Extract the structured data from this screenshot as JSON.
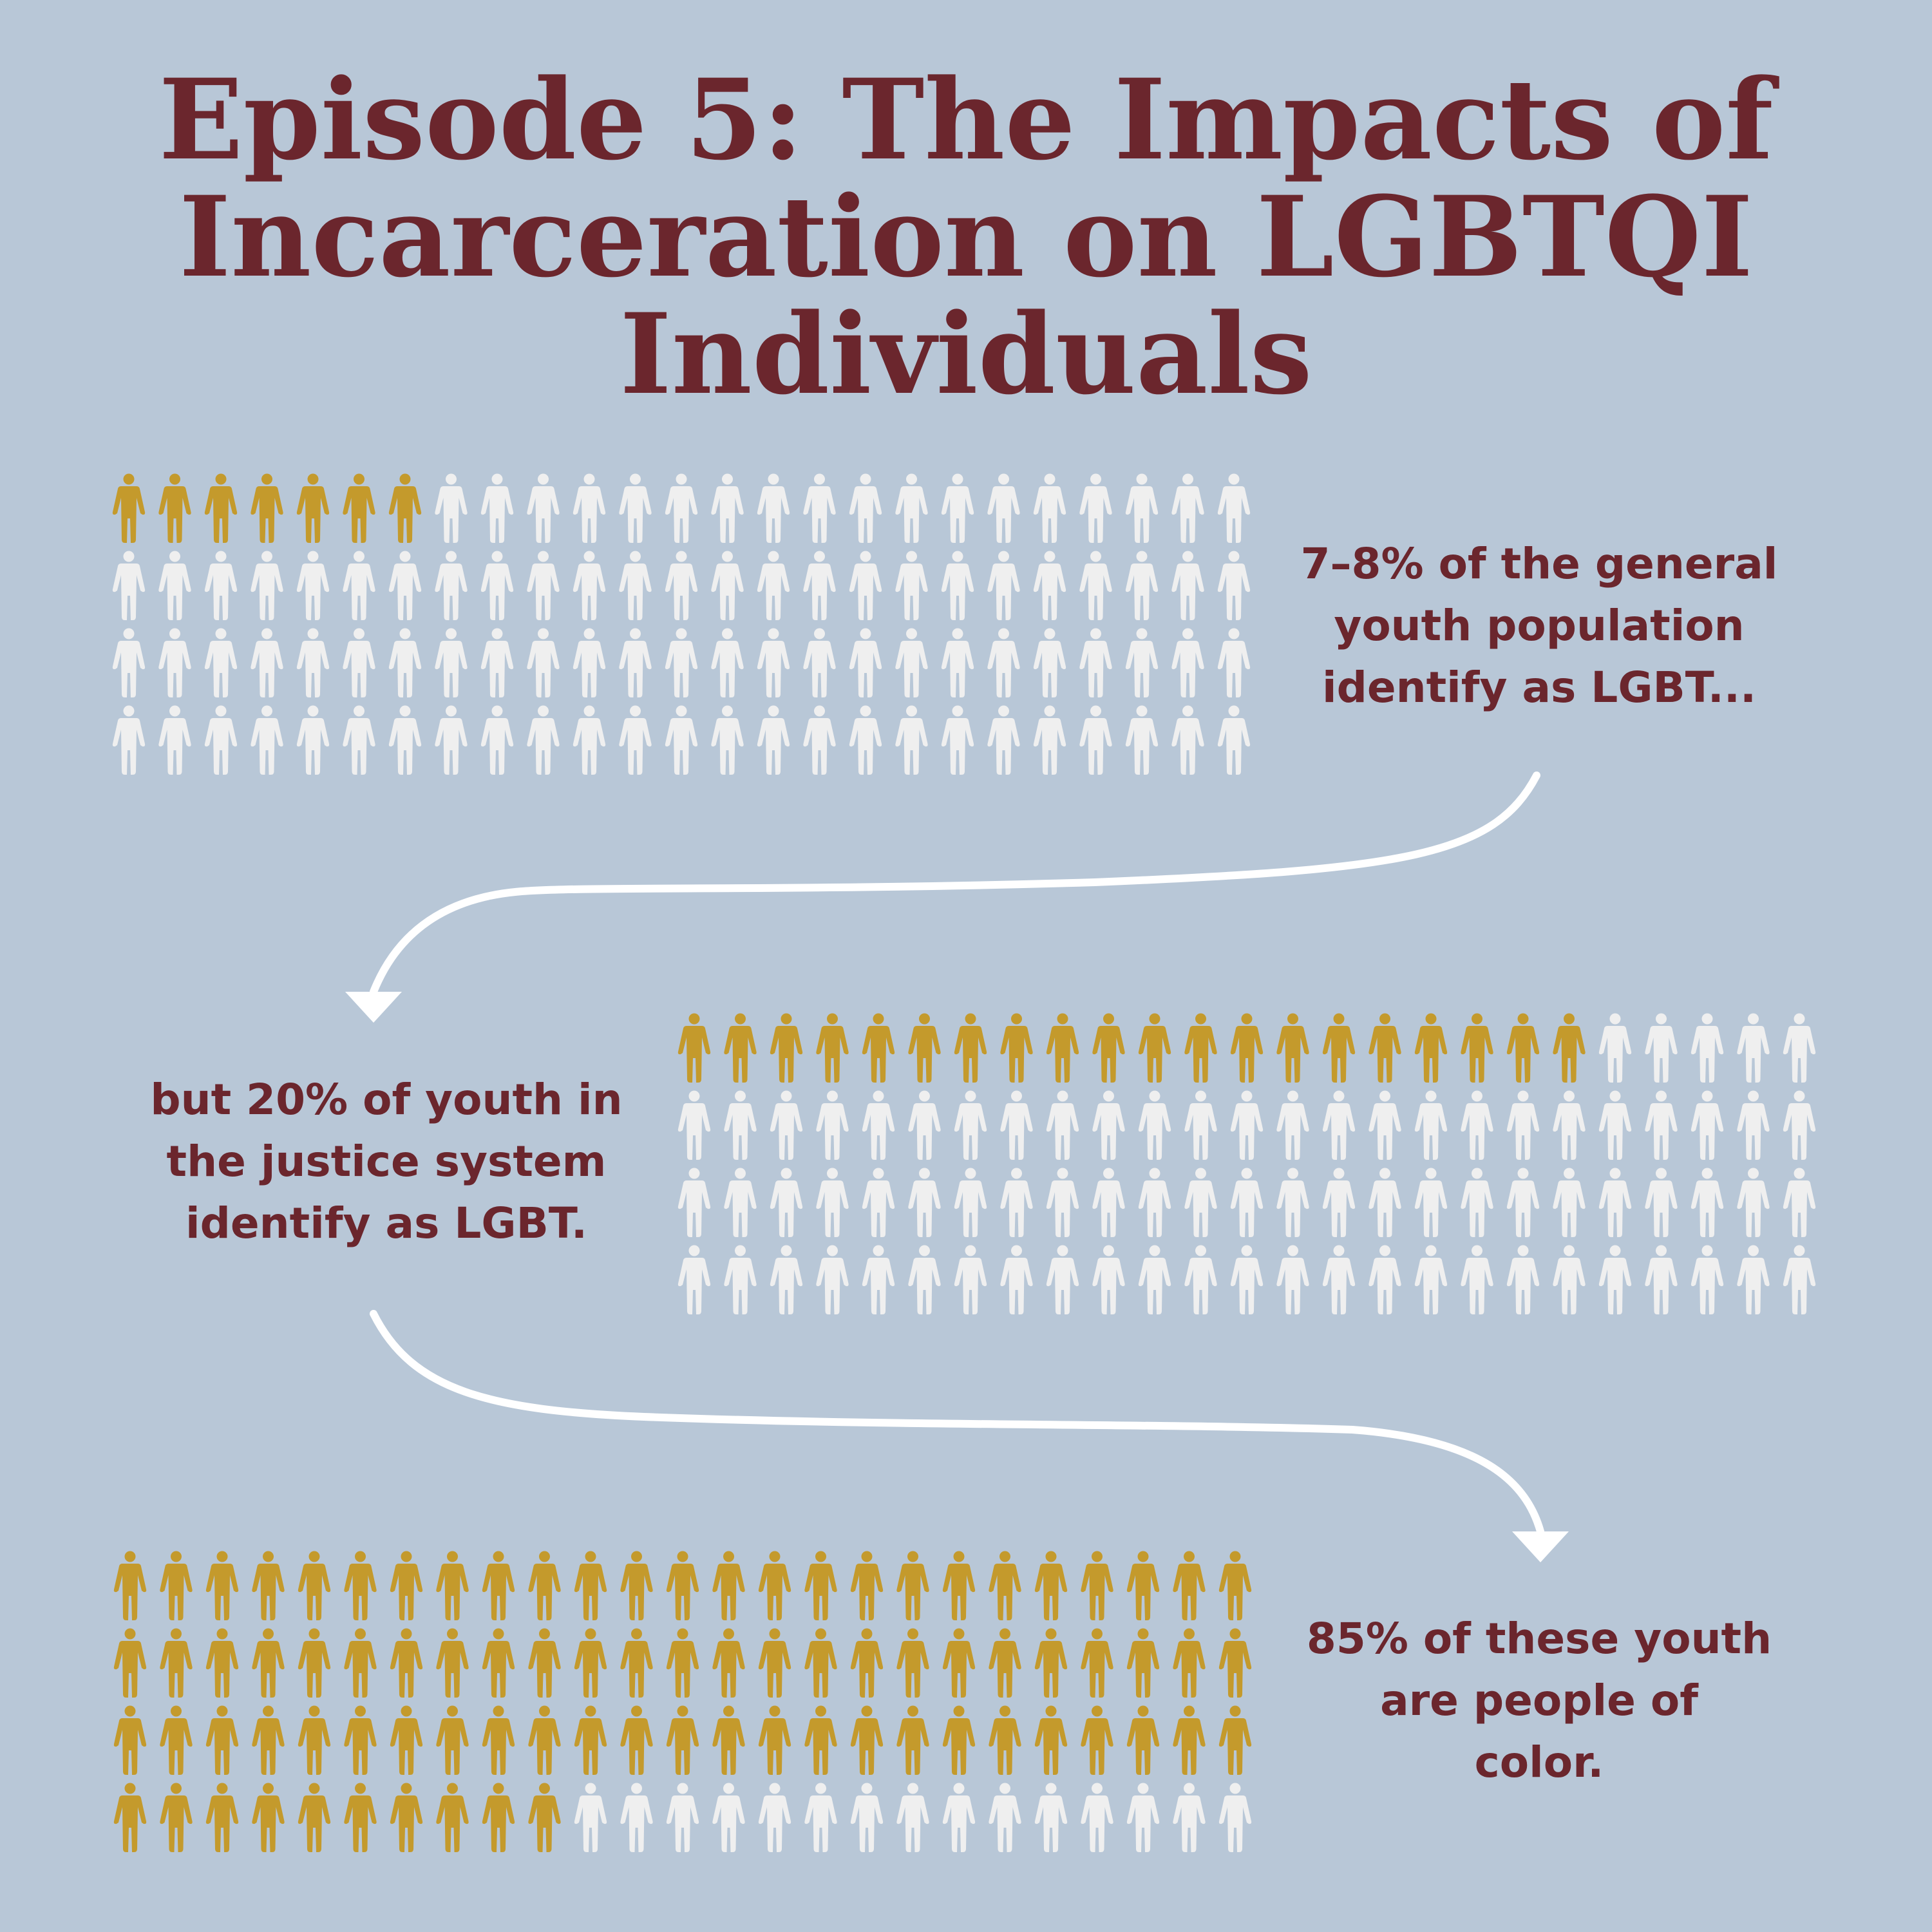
{
  "title": {
    "line1": "Episode 5: The Impacts of",
    "line2": "Incarceration on LGBTQI",
    "line3": "Individuals"
  },
  "colors": {
    "background": "#b8c7d7",
    "title": "#6b262d",
    "highlight_figure": "#c49a2c",
    "neutral_figure": "#efefef",
    "arrow": "#ffffff"
  },
  "icon": "person-icon",
  "panels": [
    {
      "id": "general-youth",
      "grid": {
        "rows": 4,
        "cols": 25,
        "highlighted": 7
      },
      "caption": [
        "7–8% of the general",
        "youth population",
        "identify as LGBT..."
      ]
    },
    {
      "id": "justice-youth",
      "grid": {
        "rows": 4,
        "cols": 25,
        "highlighted": 20
      },
      "caption": [
        "but 20% of youth in",
        "the justice system",
        "identify as LGBT."
      ]
    },
    {
      "id": "youth-of-color",
      "grid": {
        "rows": 4,
        "cols": 25,
        "highlighted": 85
      },
      "caption": [
        "85% of these youth",
        "are people of",
        "color."
      ]
    }
  ]
}
